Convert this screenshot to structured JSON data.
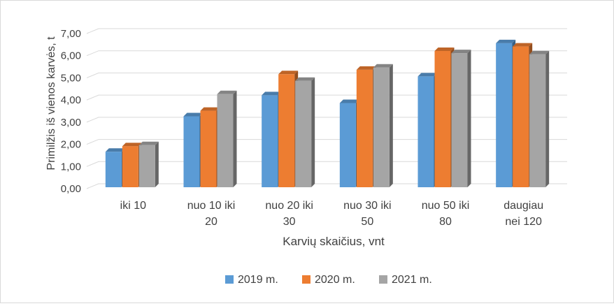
{
  "chart_data": {
    "type": "bar",
    "title": "",
    "xlabel": "Karvių skaičius, vnt",
    "ylabel": "Primilžis iš vienos karvės, t",
    "ylim": [
      0,
      7
    ],
    "y_ticks": [
      "0,00",
      "1,00",
      "2,00",
      "3,00",
      "4,00",
      "5,00",
      "6,00",
      "7,00"
    ],
    "grid": true,
    "legend_position": "bottom",
    "categories": [
      [
        "iki 10"
      ],
      [
        "nuo 10 iki",
        "20"
      ],
      [
        "nuo 20 iki",
        "30"
      ],
      [
        "nuo 30 iki",
        "50"
      ],
      [
        "nuo 50 iki",
        "80"
      ],
      [
        "daugiau",
        "nei 120"
      ]
    ],
    "series": [
      {
        "name": "2019 m.",
        "color": "#5b9bd5",
        "values": [
          1.6,
          3.2,
          4.15,
          3.8,
          5.0,
          6.5
        ]
      },
      {
        "name": "2020 m.",
        "color": "#ed7d31",
        "values": [
          1.85,
          3.45,
          5.1,
          5.3,
          6.15,
          6.35
        ]
      },
      {
        "name": "2021 m.",
        "color": "#a5a5a5",
        "values": [
          1.9,
          4.2,
          4.8,
          5.4,
          6.05,
          6.0
        ]
      }
    ]
  }
}
